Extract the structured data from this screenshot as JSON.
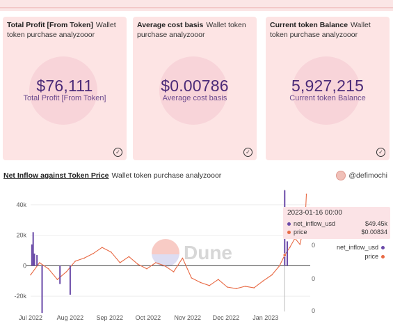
{
  "cards": [
    {
      "title": "Total Profit [From Token]",
      "subtitle": "Wallet token purchase analyzooor",
      "value": "$76,111",
      "label": "Total Profit [From Token]"
    },
    {
      "title": "Average cost basis",
      "subtitle": "Wallet token purchase analyzooor",
      "value": "$0.00786",
      "label": "Average cost basis"
    },
    {
      "title": "Current token Balance",
      "subtitle": "Wallet token purchase analyzooor",
      "value": "5,927,215",
      "label": "Current token Balance"
    }
  ],
  "card_icon": "check-circle-icon",
  "chart_panel": {
    "title": "Net Inflow against Token Price",
    "subtitle": "Wallet token purchase analyzooor",
    "author": "@defimochi",
    "watermark": "Dune",
    "tooltip": {
      "date": "2023-01-16 00:00",
      "rows": [
        {
          "name": "net_inflow_usd",
          "value": "$49.45k",
          "color": "#6a4aa8"
        },
        {
          "name": "price",
          "value": "$0.00834",
          "color": "#e86a45"
        }
      ]
    },
    "legend": [
      {
        "name": "net_inflow_usd",
        "color": "#6a4aa8"
      },
      {
        "name": "price",
        "color": "#e86a45"
      }
    ]
  },
  "chart_data": {
    "type": "bar",
    "x_ticks": [
      "Jul 2022",
      "Aug 2022",
      "Sep 2022",
      "Oct 2022",
      "Nov 2022",
      "Dec 2022",
      "Jan 2023"
    ],
    "y_ticks": [
      "40k",
      "20k",
      "0",
      "-20k"
    ],
    "y2_ticks": [
      "0",
      "0",
      "0"
    ],
    "ylim": [
      -30000,
      50000
    ],
    "series": [
      {
        "name": "net_inflow_usd",
        "type": "bar",
        "color": "#6a4aa8",
        "points": [
          {
            "x": "2022-07-02",
            "y": 14000
          },
          {
            "x": "2022-07-03",
            "y": 22000
          },
          {
            "x": "2022-07-04",
            "y": 8000
          },
          {
            "x": "2022-07-06",
            "y": 7000
          },
          {
            "x": "2022-07-10",
            "y": -31000
          },
          {
            "x": "2022-07-24",
            "y": -12000
          },
          {
            "x": "2022-08-01",
            "y": -19000
          },
          {
            "x": "2023-01-16",
            "y": 49450
          },
          {
            "x": "2023-01-18",
            "y": 16000
          }
        ]
      },
      {
        "name": "price",
        "type": "line",
        "color": "#e86a45",
        "points": [
          {
            "x": "2022-07-01",
            "y": -6000
          },
          {
            "x": "2022-07-08",
            "y": 2000
          },
          {
            "x": "2022-07-15",
            "y": -2000
          },
          {
            "x": "2022-07-22",
            "y": -9000
          },
          {
            "x": "2022-07-29",
            "y": -4000
          },
          {
            "x": "2022-08-05",
            "y": 3000
          },
          {
            "x": "2022-08-12",
            "y": 5000
          },
          {
            "x": "2022-08-19",
            "y": 8000
          },
          {
            "x": "2022-08-26",
            "y": 12000
          },
          {
            "x": "2022-09-02",
            "y": 9000
          },
          {
            "x": "2022-09-09",
            "y": 2000
          },
          {
            "x": "2022-09-16",
            "y": 6000
          },
          {
            "x": "2022-09-23",
            "y": 1000
          },
          {
            "x": "2022-09-30",
            "y": -2000
          },
          {
            "x": "2022-10-07",
            "y": 2000
          },
          {
            "x": "2022-10-14",
            "y": 0
          },
          {
            "x": "2022-10-21",
            "y": -4000
          },
          {
            "x": "2022-10-28",
            "y": 5000
          },
          {
            "x": "2022-11-04",
            "y": -8000
          },
          {
            "x": "2022-11-11",
            "y": -11000
          },
          {
            "x": "2022-11-18",
            "y": -13000
          },
          {
            "x": "2022-11-25",
            "y": -9000
          },
          {
            "x": "2022-12-02",
            "y": -14000
          },
          {
            "x": "2022-12-09",
            "y": -15000
          },
          {
            "x": "2022-12-16",
            "y": -13500
          },
          {
            "x": "2022-12-23",
            "y": -14500
          },
          {
            "x": "2022-12-30",
            "y": -10000
          },
          {
            "x": "2023-01-06",
            "y": -6000
          },
          {
            "x": "2023-01-12",
            "y": 0
          },
          {
            "x": "2023-01-16",
            "y": 7000
          },
          {
            "x": "2023-01-20",
            "y": 12000
          },
          {
            "x": "2023-01-24",
            "y": 18000
          },
          {
            "x": "2023-01-28",
            "y": 14000
          },
          {
            "x": "2023-02-01",
            "y": 30000
          },
          {
            "x": "2023-02-02",
            "y": 47000
          }
        ]
      }
    ]
  }
}
